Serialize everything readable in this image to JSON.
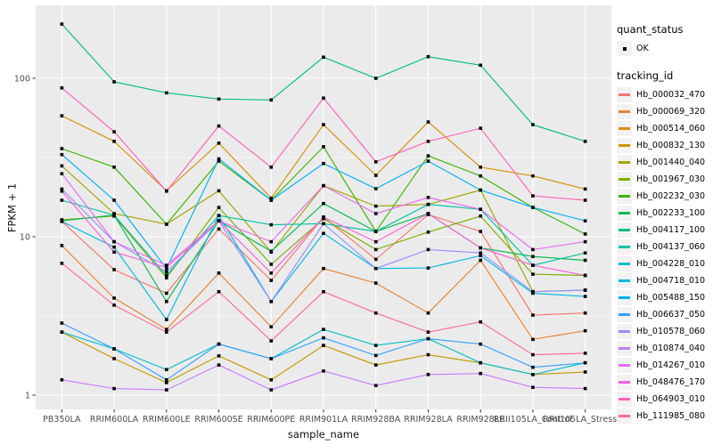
{
  "style": {
    "panel_bg": "#EBEBEB",
    "grid_color": "#FFFFFF",
    "tick_color": "#333333",
    "tick_label_color": "#4D4D4D",
    "legend_key_bg": "#F2F2F2",
    "point_color": "#000000"
  },
  "legend": {
    "quant_status_title": "quant_status",
    "quant_ok_label": "OK",
    "tracking_title": "tracking_id"
  },
  "chart_data": {
    "type": "line",
    "title": "",
    "xlabel": "sample_name",
    "ylabel": "FPKM + 1",
    "y_scale": "log10",
    "ylim": [
      1,
      288
    ],
    "y_ticks": [
      1,
      10,
      100
    ],
    "y_minor_ticks": [
      3.1623,
      31.623
    ],
    "grid": true,
    "legend_position": "right",
    "point_shape": "filled-square",
    "categories": [
      "PB350LA",
      "RRIM600LA",
      "RRIM600LE",
      "RRIM600SE",
      "RRIM600PE",
      "RRIM901LA",
      "RRIM928BA",
      "RRIM928LA",
      "RRIM928LE",
      "RRII105LA_Control",
      "RRII105LA_Stressed"
    ],
    "series": [
      {
        "name": "Hb_000032_470",
        "color": "#F8766D",
        "values": [
          12.5,
          6.2,
          4.4,
          11.2,
          5.3,
          13.3,
          7.2,
          13.8,
          10.8,
          3.2,
          3.3
        ]
      },
      {
        "name": "Hb_000069_320",
        "color": "#EA8331",
        "values": [
          8.8,
          4.1,
          2.6,
          5.9,
          2.7,
          6.3,
          5.1,
          3.3,
          7.1,
          2.25,
          2.55
        ]
      },
      {
        "name": "Hb_000514_060",
        "color": "#D89000",
        "values": [
          58,
          40,
          19.5,
          39,
          17.5,
          51,
          24.4,
          53,
          27.5,
          24.2,
          20
        ]
      },
      {
        "name": "Hb_000832_130",
        "color": "#C09B00",
        "values": [
          2.5,
          1.7,
          1.2,
          1.77,
          1.25,
          2.06,
          1.55,
          1.8,
          1.6,
          1.35,
          1.4
        ]
      },
      {
        "name": "Hb_001440_040",
        "color": "#A3A500",
        "values": [
          28,
          14,
          12,
          19.5,
          8,
          21,
          15.6,
          16,
          19.7,
          4.5,
          4.6
        ]
      },
      {
        "name": "Hb_001967_030",
        "color": "#7CAE00",
        "values": [
          12.8,
          13.5,
          5.5,
          15.3,
          6.7,
          13,
          8.3,
          10.7,
          13.5,
          5.8,
          5.7
        ]
      },
      {
        "name": "Hb_002232_030",
        "color": "#39B600",
        "values": [
          36,
          27.5,
          12,
          30,
          17,
          37,
          10.8,
          32.4,
          24.2,
          15.3,
          10.4
        ]
      },
      {
        "name": "Hb_002233_100",
        "color": "#00BB4E",
        "values": [
          12.6,
          13.7,
          3.9,
          12.6,
          8.1,
          16.2,
          10.8,
          14,
          8.5,
          7.5,
          7.1
        ]
      },
      {
        "name": "Hb_004117_100",
        "color": "#00BF7D",
        "values": [
          220,
          95,
          81,
          74,
          73,
          136,
          100,
          137,
          121,
          51,
          40
        ]
      },
      {
        "name": "Hb_004137_060",
        "color": "#00C1A3",
        "values": [
          17,
          13.7,
          5.7,
          13.6,
          11.9,
          12.1,
          10.8,
          16,
          14.9,
          6.6,
          7.9
        ]
      },
      {
        "name": "Hb_004228_010",
        "color": "#00BFC4",
        "values": [
          2.5,
          1.96,
          1.45,
          2.1,
          1.7,
          2.6,
          2.06,
          2.27,
          1.6,
          1.35,
          1.6
        ]
      },
      {
        "name": "Hb_004718_010",
        "color": "#00BAE0",
        "values": [
          12.5,
          8.6,
          3.0,
          13.6,
          3.9,
          10.5,
          6.3,
          6.35,
          7.6,
          4.4,
          4.2
        ]
      },
      {
        "name": "Hb_005488_150",
        "color": "#00B0F6",
        "values": [
          33,
          17,
          6.3,
          31,
          17,
          29,
          20.1,
          30,
          19.7,
          15.3,
          12.6
        ]
      },
      {
        "name": "Hb_006637_050",
        "color": "#35A2FF",
        "values": [
          2.85,
          1.96,
          1.25,
          2.1,
          1.7,
          2.3,
          1.78,
          2.27,
          2.1,
          1.5,
          1.6
        ]
      },
      {
        "name": "Hb_010578_060",
        "color": "#9590FF",
        "values": [
          20,
          9.3,
          6.0,
          12.6,
          3.9,
          12.1,
          6.3,
          8.3,
          7.9,
          4.5,
          4.6
        ]
      },
      {
        "name": "Hb_010874_040",
        "color": "#C77CFF",
        "values": [
          1.25,
          1.1,
          1.08,
          1.55,
          1.08,
          1.42,
          1.15,
          1.35,
          1.37,
          1.12,
          1.1
        ]
      },
      {
        "name": "Hb_014267_010",
        "color": "#E76BF3",
        "values": [
          25,
          9.3,
          6.6,
          12.6,
          9.3,
          21,
          14,
          17.7,
          14.9,
          8.3,
          9.3
        ]
      },
      {
        "name": "Hb_048476_170",
        "color": "#FA62DB",
        "values": [
          19.4,
          8.0,
          6.4,
          12.6,
          5.9,
          13.3,
          9.3,
          14,
          8.5,
          6.6,
          5.7
        ]
      },
      {
        "name": "Hb_064903_010",
        "color": "#FF62BC",
        "values": [
          87,
          46,
          19.4,
          50,
          27.5,
          75,
          29.7,
          40,
          48.4,
          18.1,
          17
        ]
      },
      {
        "name": "Hb_111985_080",
        "color": "#FF6A98",
        "values": [
          6.8,
          3.7,
          2.5,
          4.5,
          2.2,
          4.5,
          3.3,
          2.5,
          2.9,
          1.8,
          1.84
        ]
      }
    ]
  }
}
